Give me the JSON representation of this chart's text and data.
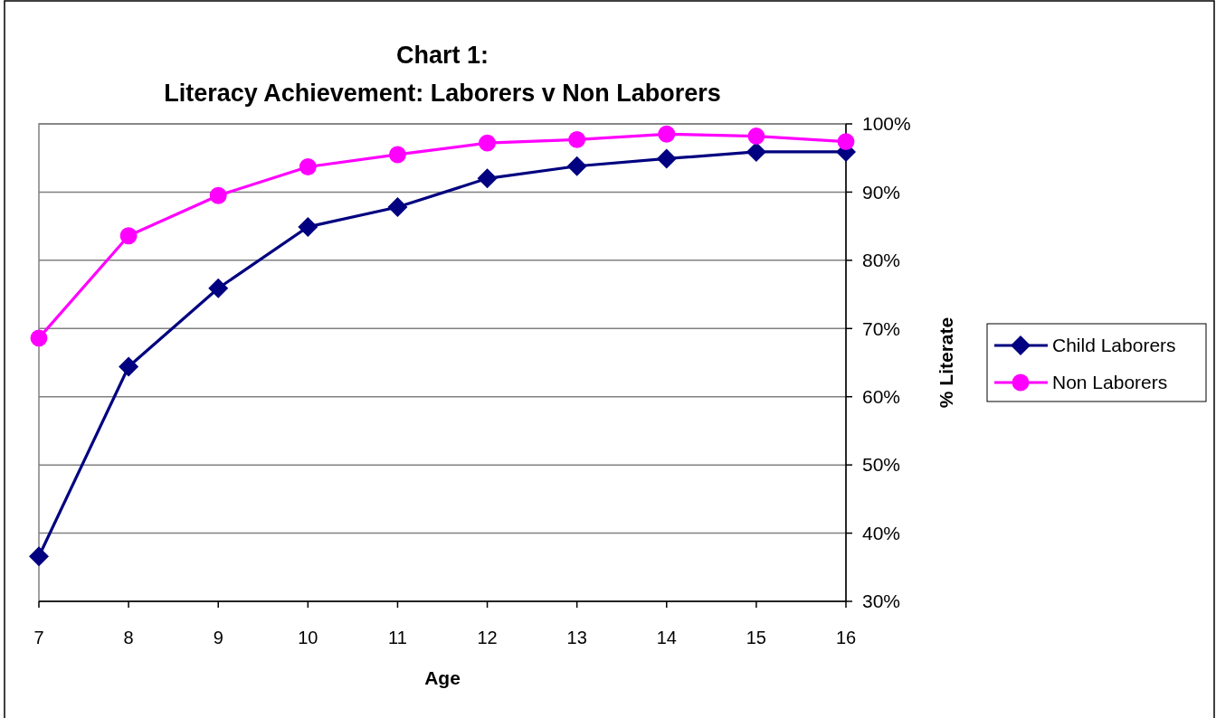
{
  "chart_data": {
    "type": "line",
    "title": "Chart 1:\nLiteracy Achievement: Laborers v Non Laborers",
    "xlabel": "Age",
    "ylabel": "% Literate",
    "x": [
      7,
      8,
      9,
      10,
      11,
      12,
      13,
      14,
      15,
      16
    ],
    "series": [
      {
        "name": "Child Laborers",
        "color": "#000080",
        "marker": "diamond",
        "values": [
          36.6,
          64.4,
          75.9,
          84.9,
          87.8,
          92.0,
          93.8,
          94.9,
          95.9,
          95.9
        ]
      },
      {
        "name": "Non Laborers",
        "color": "#ff00ff",
        "marker": "circle",
        "values": [
          68.6,
          83.6,
          89.5,
          93.7,
          95.5,
          97.2,
          97.7,
          98.5,
          98.2,
          97.4
        ]
      }
    ],
    "xlim": [
      7,
      16
    ],
    "xticks": [
      7,
      8,
      9,
      10,
      11,
      12,
      13,
      14,
      15,
      16
    ],
    "ylim": [
      30,
      100
    ],
    "yticks": [
      {
        "value": 30,
        "label": "30%"
      },
      {
        "value": 40,
        "label": "40%"
      },
      {
        "value": 50,
        "label": "50%"
      },
      {
        "value": 60,
        "label": "60%"
      },
      {
        "value": 70,
        "label": "70%"
      },
      {
        "value": 80,
        "label": "80%"
      },
      {
        "value": 90,
        "label": "90%"
      },
      {
        "value": 100,
        "label": "100%"
      }
    ],
    "grid": "y",
    "legend": "right",
    "line_style": "solid"
  }
}
